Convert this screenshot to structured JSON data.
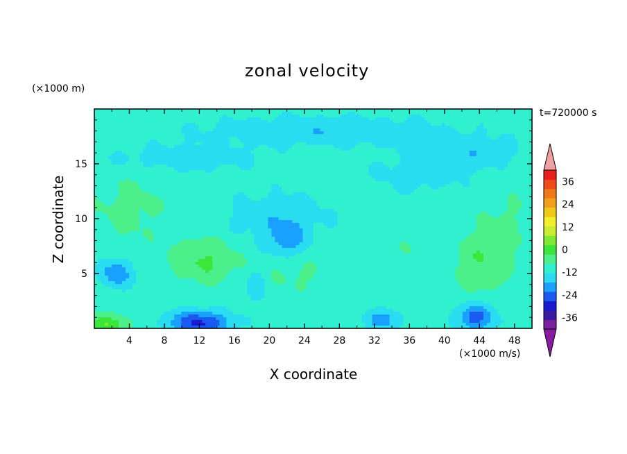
{
  "chart_data": {
    "type": "heatmap",
    "title": "zonal velocity",
    "xlabel": "X coordinate",
    "ylabel": "Z coordinate",
    "x_units": "(×1000 m/s)",
    "y_units": "(×1000 m)",
    "time_label": "t=720000 s",
    "xlim": [
      0,
      50
    ],
    "ylim": [
      0,
      20
    ],
    "x_ticks": [
      "4",
      "8",
      "12",
      "16",
      "20",
      "24",
      "28",
      "32",
      "36",
      "40",
      "44",
      "48"
    ],
    "y_ticks": [
      "5",
      "10",
      "15"
    ],
    "colorbar": {
      "range": [
        -42,
        42
      ],
      "step": 6,
      "tick_labels": [
        "36",
        "24",
        "12",
        "0",
        "-12",
        "-24",
        "-36"
      ],
      "tick_values": [
        36,
        24,
        12,
        0,
        -12,
        -24,
        -36
      ],
      "extend": "both",
      "colors": [
        "#7a1fa0",
        "#3a1aa0",
        "#1a1ad0",
        "#1a5af0",
        "#1aa0ff",
        "#2adcf0",
        "#30f0d0",
        "#4cf08a",
        "#3ae63a",
        "#80ea30",
        "#c8ec30",
        "#f0f02a",
        "#f0c81a",
        "#f0a01a",
        "#f07818",
        "#f04a18",
        "#e81e1e"
      ],
      "over_color": "#f0a0a0",
      "under_color": "#8a1aa0"
    },
    "field_features": [
      {
        "x": 12.5,
        "z": 6.2,
        "value": 10,
        "sx": 3.8,
        "sz": 2.0
      },
      {
        "x": 4,
        "z": 11,
        "value": 5,
        "sx": 4,
        "sz": 3
      },
      {
        "x": 44,
        "z": 6,
        "value": 8,
        "sx": 3,
        "sz": 2.5
      },
      {
        "x": 47,
        "z": 9,
        "value": 4,
        "sx": 3,
        "sz": 4
      },
      {
        "x": 23,
        "z": 5,
        "value": 4,
        "sx": 4,
        "sz": 1.8
      },
      {
        "x": 34,
        "z": 7,
        "value": 3,
        "sx": 2.5,
        "sz": 2.5
      },
      {
        "x": 1.5,
        "z": 0.3,
        "value": 14,
        "sx": 2.5,
        "sz": 1.0
      },
      {
        "x": 12,
        "z": 0.5,
        "value": -22,
        "sx": 3.5,
        "sz": 1.1
      },
      {
        "x": 2.5,
        "z": 5,
        "value": -14,
        "sx": 1.8,
        "sz": 1.3
      },
      {
        "x": 43.5,
        "z": 1,
        "value": -18,
        "sx": 2.2,
        "sz": 1.2
      },
      {
        "x": 33,
        "z": 0.8,
        "value": -12,
        "sx": 2.2,
        "sz": 1.0
      },
      {
        "x": 21,
        "z": 10,
        "value": -7,
        "sx": 6,
        "sz": 2.5
      },
      {
        "x": 22,
        "z": 8,
        "value": -10,
        "sx": 2,
        "sz": 1.6
      },
      {
        "x": 18.5,
        "z": 4,
        "value": -8,
        "sx": 1.2,
        "sz": 1.5
      },
      {
        "x": 26,
        "z": 18,
        "value": -8,
        "sx": 14,
        "sz": 1.4
      },
      {
        "x": 10,
        "z": 15.5,
        "value": -6,
        "sx": 9,
        "sz": 1.3
      },
      {
        "x": 43,
        "z": 16,
        "value": -7,
        "sx": 6,
        "sz": 1.5
      },
      {
        "x": 37,
        "z": 14,
        "value": -5,
        "sx": 6,
        "sz": 2
      },
      {
        "x": 25,
        "z": 15,
        "value": 2,
        "sx": 4,
        "sz": 1.2
      }
    ],
    "base_value": -3
  }
}
